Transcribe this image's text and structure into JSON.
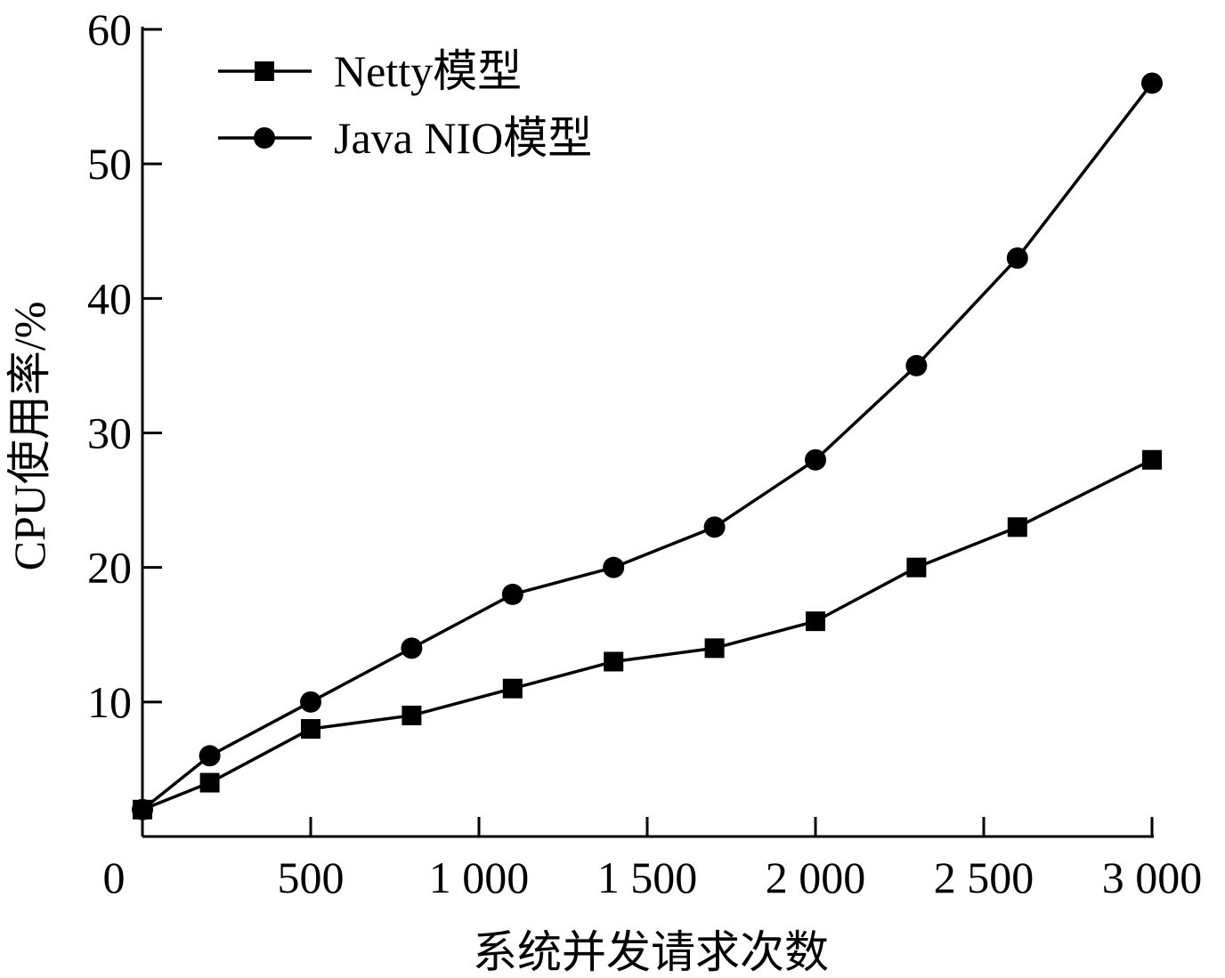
{
  "chart_data": {
    "type": "line",
    "xlabel": "系统并发请求次数",
    "ylabel": "CPU使用率/%",
    "xlim": [
      0,
      3000
    ],
    "ylim": [
      0,
      60
    ],
    "x_ticks": [
      0,
      500,
      1000,
      1500,
      2000,
      2500,
      3000
    ],
    "x_tick_labels": [
      "0",
      "500",
      "1 000",
      "1 500",
      "2 000",
      "2 500",
      "3 000"
    ],
    "y_ticks": [
      10,
      20,
      30,
      40,
      50,
      60
    ],
    "y_tick_labels": [
      "10",
      "20",
      "30",
      "40",
      "50",
      "60"
    ],
    "grid": false,
    "legend_position": "top-left",
    "x": [
      0,
      200,
      500,
      800,
      1100,
      1400,
      1700,
      2000,
      2300,
      2600,
      3000
    ],
    "series": [
      {
        "name": "Netty模型",
        "marker": "square",
        "color": "#000000",
        "values": [
          2,
          4,
          8,
          9,
          11,
          13,
          14,
          16,
          20,
          23,
          28
        ]
      },
      {
        "name": "Java NIO模型",
        "marker": "circle",
        "color": "#000000",
        "values": [
          2,
          6,
          10,
          14,
          18,
          20,
          23,
          28,
          35,
          43,
          56
        ]
      }
    ]
  }
}
